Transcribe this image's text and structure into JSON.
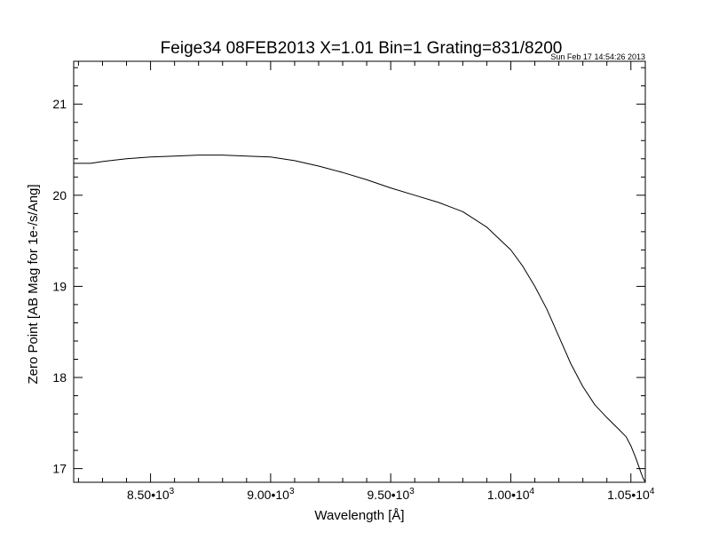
{
  "chart_data": {
    "type": "line",
    "title": "Feige34 08FEB2013 X=1.01 Bin=1 Grating=831/8200",
    "timestamp": "Sun Feb 17 14:54:26 2013",
    "xlabel": "Wavelength [Å]",
    "ylabel": "Zero Point [AB Mag for 1e-/s/Ang]",
    "xlim": [
      8180,
      10560
    ],
    "ylim": [
      16.85,
      21.47
    ],
    "log_scale": false,
    "grid": false,
    "legend": "none",
    "line_color": "#000000",
    "x_ticks": [
      {
        "value": 8500,
        "mantissa": "8.50",
        "exponent": "3"
      },
      {
        "value": 9000,
        "mantissa": "9.00",
        "exponent": "3"
      },
      {
        "value": 9500,
        "mantissa": "9.50",
        "exponent": "3"
      },
      {
        "value": 10000,
        "mantissa": "1.00",
        "exponent": "4"
      },
      {
        "value": 10500,
        "mantissa": "1.05",
        "exponent": "4"
      }
    ],
    "x_minor_step": 100,
    "y_ticks": [
      17,
      18,
      19,
      20,
      21
    ],
    "y_minor_step": 0.2,
    "series": [
      {
        "x": [
          8180,
          8250,
          8300,
          8400,
          8500,
          8600,
          8700,
          8800,
          8900,
          9000,
          9100,
          9200,
          9300,
          9400,
          9500,
          9600,
          9700,
          9800,
          9900,
          10000,
          10050,
          10100,
          10150,
          10200,
          10250,
          10300,
          10350,
          10400,
          10450,
          10480,
          10500,
          10520,
          10540,
          10550,
          10560
        ],
        "y": [
          20.35,
          20.35,
          20.37,
          20.4,
          20.42,
          20.43,
          20.44,
          20.44,
          20.43,
          20.42,
          20.38,
          20.32,
          20.25,
          20.17,
          20.08,
          20.0,
          19.92,
          19.82,
          19.65,
          19.4,
          19.22,
          19.0,
          18.75,
          18.45,
          18.15,
          17.9,
          17.7,
          17.56,
          17.43,
          17.35,
          17.25,
          17.12,
          16.97,
          16.9,
          16.85
        ]
      }
    ]
  }
}
